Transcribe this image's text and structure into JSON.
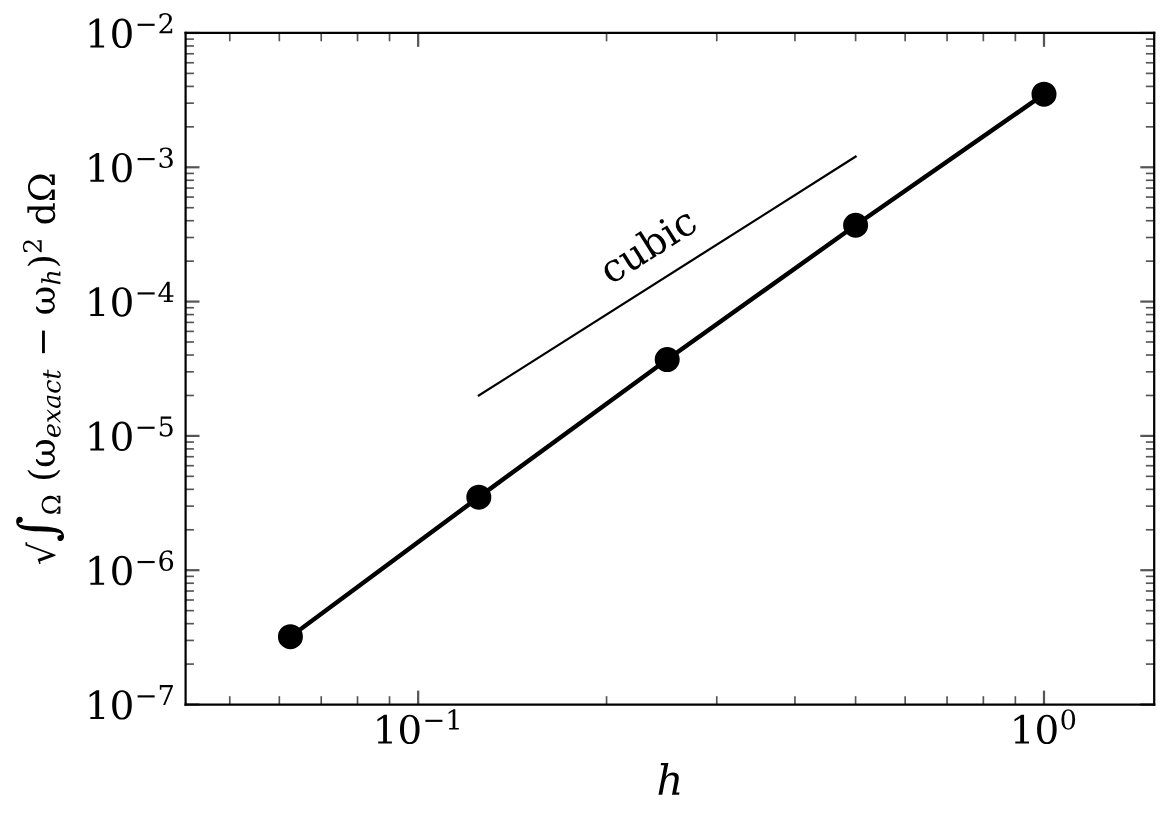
{
  "chart_data": {
    "type": "line",
    "xlabel": "h",
    "ylabel": "√∫$_{Ω}$ (ω$_{exact}$ − ω$_{h}$)$^{2}$ dΩ",
    "x": [
      0.0625,
      0.125,
      0.25,
      0.5,
      1
    ],
    "series": [
      {
        "color": "#000000",
        "values": [
          3.2e-07,
          3.5e-06,
          3.7e-05,
          0.00037,
          0.0035
        ],
        "marker": "circle"
      },
      {
        "type": "line",
        "color": "#000000",
        "x": [
          0.125,
          0.5
        ],
        "values": [
          2e-05,
          0.0012
        ],
        "marker": "none"
      }
    ],
    "annotations": [
      "cubic"
    ],
    "log": "xy",
    "xlim": [
      0.0425,
      1.5
    ],
    "ylim": [
      1e-07,
      0.01
    ],
    "xticks": [
      {
        "value": 0.1,
        "label": "10$^{−1}$"
      },
      {
        "value": 1,
        "label": "10$^{0}$"
      }
    ],
    "yticks": [
      {
        "value": 1e-07,
        "label": "10$^{−7}$"
      },
      {
        "value": 1e-06,
        "label": "10$^{−6}$"
      },
      {
        "value": 1e-05,
        "label": "10$^{−5}$"
      },
      {
        "value": 0.0001,
        "label": "10$^{−4}$"
      },
      {
        "value": 0.001,
        "label": "10$^{−3}$"
      },
      {
        "value": 0.01,
        "label": "10$^{−2}$"
      }
    ],
    "grid": false,
    "legend": false
  }
}
